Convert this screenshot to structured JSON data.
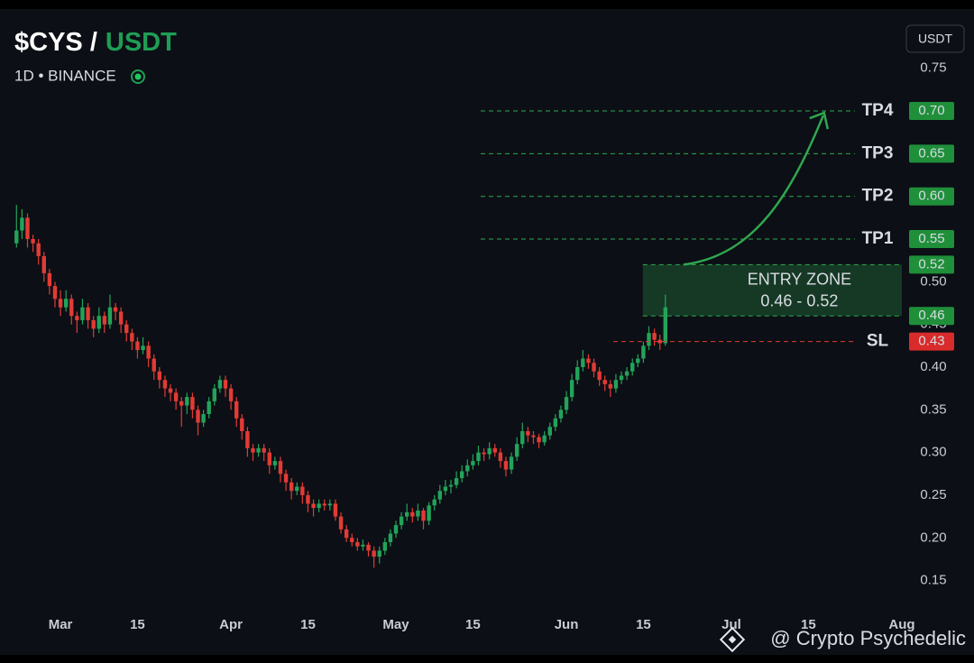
{
  "chart_data": {
    "type": "candlestick",
    "title_base": "$CYS /",
    "title_quote": "USDT",
    "subtitle": "1D • BINANCE",
    "currency_button": "USDT",
    "watermark": "@ Crypto Psychedelic",
    "up_color": "#22a35a",
    "down_color": "#e23b35",
    "x": [
      "02-21",
      "02-22",
      "02-23",
      "02-24",
      "02-25",
      "02-26",
      "02-27",
      "02-28",
      "03-01",
      "03-02",
      "03-03",
      "03-04",
      "03-05",
      "03-06",
      "03-07",
      "03-08",
      "03-09",
      "03-10",
      "03-11",
      "03-12",
      "03-13",
      "03-14",
      "03-15",
      "03-16",
      "03-17",
      "03-18",
      "03-19",
      "03-20",
      "03-21",
      "03-22",
      "03-23",
      "03-24",
      "03-25",
      "03-26",
      "03-27",
      "03-28",
      "03-29",
      "03-30",
      "03-31",
      "04-01",
      "04-02",
      "04-03",
      "04-04",
      "04-05",
      "04-06",
      "04-07",
      "04-08",
      "04-09",
      "04-10",
      "04-11",
      "04-12",
      "04-13",
      "04-14",
      "04-15",
      "04-16",
      "04-17",
      "04-18",
      "04-19",
      "04-20",
      "04-21",
      "04-22",
      "04-23",
      "04-24",
      "04-25",
      "04-26",
      "04-27",
      "04-28",
      "04-29",
      "04-30",
      "05-01",
      "05-02",
      "05-03",
      "05-04",
      "05-05",
      "05-06",
      "05-07",
      "05-08",
      "05-09",
      "05-10",
      "05-11",
      "05-12",
      "05-13",
      "05-14",
      "05-15",
      "05-16",
      "05-17",
      "05-18",
      "05-19",
      "05-20",
      "05-21",
      "05-22",
      "05-23",
      "05-24",
      "05-25",
      "05-26",
      "05-27",
      "05-28",
      "05-29",
      "05-30",
      "05-31",
      "06-01",
      "06-02",
      "06-03",
      "06-04",
      "06-05",
      "06-06",
      "06-07",
      "06-08",
      "06-09",
      "06-10",
      "06-11",
      "06-12",
      "06-13",
      "06-14",
      "06-15",
      "06-16",
      "06-17",
      "06-18",
      "06-19"
    ],
    "ohlc": [
      [
        0.545,
        0.59,
        0.54,
        0.56
      ],
      [
        0.56,
        0.585,
        0.55,
        0.575
      ],
      [
        0.575,
        0.58,
        0.54,
        0.55
      ],
      [
        0.55,
        0.555,
        0.535,
        0.545
      ],
      [
        0.545,
        0.55,
        0.52,
        0.53
      ],
      [
        0.53,
        0.535,
        0.5,
        0.51
      ],
      [
        0.51,
        0.515,
        0.485,
        0.495
      ],
      [
        0.495,
        0.5,
        0.47,
        0.48
      ],
      [
        0.48,
        0.49,
        0.46,
        0.47
      ],
      [
        0.47,
        0.49,
        0.465,
        0.48
      ],
      [
        0.48,
        0.485,
        0.45,
        0.46
      ],
      [
        0.46,
        0.465,
        0.44,
        0.455
      ],
      [
        0.455,
        0.48,
        0.45,
        0.47
      ],
      [
        0.47,
        0.475,
        0.445,
        0.455
      ],
      [
        0.455,
        0.46,
        0.435,
        0.445
      ],
      [
        0.445,
        0.47,
        0.44,
        0.46
      ],
      [
        0.46,
        0.465,
        0.44,
        0.45
      ],
      [
        0.45,
        0.485,
        0.445,
        0.47
      ],
      [
        0.47,
        0.475,
        0.455,
        0.465
      ],
      [
        0.465,
        0.47,
        0.44,
        0.45
      ],
      [
        0.45,
        0.455,
        0.43,
        0.44
      ],
      [
        0.44,
        0.445,
        0.42,
        0.43
      ],
      [
        0.43,
        0.435,
        0.41,
        0.42
      ],
      [
        0.42,
        0.435,
        0.415,
        0.425
      ],
      [
        0.425,
        0.43,
        0.4,
        0.41
      ],
      [
        0.41,
        0.415,
        0.385,
        0.395
      ],
      [
        0.395,
        0.4,
        0.375,
        0.385
      ],
      [
        0.385,
        0.39,
        0.365,
        0.375
      ],
      [
        0.375,
        0.38,
        0.36,
        0.37
      ],
      [
        0.37,
        0.375,
        0.35,
        0.36
      ],
      [
        0.36,
        0.365,
        0.33,
        0.355
      ],
      [
        0.355,
        0.37,
        0.345,
        0.365
      ],
      [
        0.365,
        0.37,
        0.34,
        0.35
      ],
      [
        0.35,
        0.355,
        0.32,
        0.335
      ],
      [
        0.335,
        0.35,
        0.33,
        0.345
      ],
      [
        0.345,
        0.365,
        0.34,
        0.36
      ],
      [
        0.36,
        0.38,
        0.355,
        0.375
      ],
      [
        0.375,
        0.39,
        0.37,
        0.385
      ],
      [
        0.385,
        0.39,
        0.365,
        0.375
      ],
      [
        0.375,
        0.38,
        0.35,
        0.36
      ],
      [
        0.36,
        0.365,
        0.33,
        0.34
      ],
      [
        0.34,
        0.345,
        0.315,
        0.325
      ],
      [
        0.325,
        0.33,
        0.295,
        0.305
      ],
      [
        0.305,
        0.31,
        0.29,
        0.3
      ],
      [
        0.3,
        0.31,
        0.295,
        0.305
      ],
      [
        0.305,
        0.31,
        0.29,
        0.3
      ],
      [
        0.3,
        0.305,
        0.275,
        0.285
      ],
      [
        0.285,
        0.295,
        0.28,
        0.29
      ],
      [
        0.29,
        0.295,
        0.265,
        0.275
      ],
      [
        0.275,
        0.28,
        0.255,
        0.265
      ],
      [
        0.265,
        0.27,
        0.245,
        0.255
      ],
      [
        0.255,
        0.265,
        0.25,
        0.26
      ],
      [
        0.26,
        0.265,
        0.24,
        0.25
      ],
      [
        0.25,
        0.255,
        0.23,
        0.24
      ],
      [
        0.24,
        0.245,
        0.225,
        0.235
      ],
      [
        0.235,
        0.245,
        0.23,
        0.24
      ],
      [
        0.24,
        0.245,
        0.232,
        0.238
      ],
      [
        0.238,
        0.245,
        0.232,
        0.24
      ],
      [
        0.24,
        0.245,
        0.22,
        0.225
      ],
      [
        0.225,
        0.23,
        0.205,
        0.21
      ],
      [
        0.21,
        0.215,
        0.195,
        0.2
      ],
      [
        0.2,
        0.205,
        0.19,
        0.195
      ],
      [
        0.195,
        0.2,
        0.185,
        0.19
      ],
      [
        0.19,
        0.198,
        0.185,
        0.192
      ],
      [
        0.192,
        0.195,
        0.178,
        0.185
      ],
      [
        0.185,
        0.19,
        0.165,
        0.178
      ],
      [
        0.178,
        0.19,
        0.17,
        0.185
      ],
      [
        0.185,
        0.2,
        0.18,
        0.195
      ],
      [
        0.195,
        0.21,
        0.19,
        0.205
      ],
      [
        0.205,
        0.22,
        0.2,
        0.215
      ],
      [
        0.215,
        0.23,
        0.21,
        0.225
      ],
      [
        0.225,
        0.24,
        0.22,
        0.23
      ],
      [
        0.23,
        0.235,
        0.218,
        0.225
      ],
      [
        0.225,
        0.24,
        0.22,
        0.232
      ],
      [
        0.232,
        0.235,
        0.21,
        0.22
      ],
      [
        0.22,
        0.242,
        0.215,
        0.238
      ],
      [
        0.238,
        0.25,
        0.232,
        0.245
      ],
      [
        0.245,
        0.262,
        0.24,
        0.255
      ],
      [
        0.255,
        0.268,
        0.25,
        0.26
      ],
      [
        0.26,
        0.268,
        0.252,
        0.262
      ],
      [
        0.262,
        0.278,
        0.258,
        0.27
      ],
      [
        0.27,
        0.285,
        0.265,
        0.278
      ],
      [
        0.278,
        0.292,
        0.272,
        0.285
      ],
      [
        0.285,
        0.298,
        0.28,
        0.29
      ],
      [
        0.29,
        0.308,
        0.285,
        0.3
      ],
      [
        0.3,
        0.305,
        0.29,
        0.298
      ],
      [
        0.298,
        0.312,
        0.292,
        0.305
      ],
      [
        0.305,
        0.31,
        0.295,
        0.3
      ],
      [
        0.3,
        0.305,
        0.282,
        0.29
      ],
      [
        0.29,
        0.295,
        0.272,
        0.28
      ],
      [
        0.28,
        0.3,
        0.275,
        0.295
      ],
      [
        0.295,
        0.318,
        0.29,
        0.31
      ],
      [
        0.31,
        0.335,
        0.305,
        0.325
      ],
      [
        0.325,
        0.33,
        0.312,
        0.32
      ],
      [
        0.32,
        0.325,
        0.31,
        0.318
      ],
      [
        0.318,
        0.322,
        0.305,
        0.312
      ],
      [
        0.312,
        0.325,
        0.308,
        0.32
      ],
      [
        0.32,
        0.335,
        0.315,
        0.33
      ],
      [
        0.33,
        0.345,
        0.325,
        0.34
      ],
      [
        0.34,
        0.355,
        0.335,
        0.35
      ],
      [
        0.35,
        0.372,
        0.345,
        0.365
      ],
      [
        0.365,
        0.392,
        0.36,
        0.385
      ],
      [
        0.385,
        0.408,
        0.38,
        0.4
      ],
      [
        0.4,
        0.42,
        0.395,
        0.41
      ],
      [
        0.41,
        0.415,
        0.398,
        0.405
      ],
      [
        0.405,
        0.41,
        0.388,
        0.395
      ],
      [
        0.395,
        0.4,
        0.378,
        0.385
      ],
      [
        0.385,
        0.39,
        0.372,
        0.38
      ],
      [
        0.38,
        0.385,
        0.365,
        0.375
      ],
      [
        0.375,
        0.392,
        0.37,
        0.385
      ],
      [
        0.385,
        0.395,
        0.38,
        0.39
      ],
      [
        0.39,
        0.4,
        0.385,
        0.395
      ],
      [
        0.395,
        0.41,
        0.39,
        0.405
      ],
      [
        0.405,
        0.415,
        0.4,
        0.41
      ],
      [
        0.41,
        0.43,
        0.405,
        0.425
      ],
      [
        0.425,
        0.448,
        0.42,
        0.44
      ],
      [
        0.44,
        0.445,
        0.425,
        0.432
      ],
      [
        0.432,
        0.438,
        0.42,
        0.428
      ],
      [
        0.428,
        0.485,
        0.425,
        0.47
      ]
    ],
    "xlim": [
      "02-18",
      "08-01"
    ],
    "xticks": [
      {
        "value": "03-01",
        "label": "Mar"
      },
      {
        "value": "03-15",
        "label": "15"
      },
      {
        "value": "04-01",
        "label": "Apr"
      },
      {
        "value": "04-15",
        "label": "15"
      },
      {
        "value": "05-01",
        "label": "May"
      },
      {
        "value": "05-15",
        "label": "15"
      },
      {
        "value": "06-01",
        "label": "Jun"
      },
      {
        "value": "06-15",
        "label": "15"
      },
      {
        "value": "07-01",
        "label": "Jul"
      },
      {
        "value": "07-15",
        "label": "15"
      },
      {
        "value": "08-01",
        "label": "Aug"
      }
    ],
    "ylim": [
      0.12,
      0.83
    ],
    "yticks": [
      0.15,
      {
        "value": 0.2,
        "label": "0.20"
      },
      0.25,
      {
        "value": 0.3,
        "label": "0.30"
      },
      0.35,
      {
        "value": 0.4,
        "label": "0.40"
      },
      0.45,
      {
        "value": 0.5,
        "label": "0.50"
      },
      0.55,
      {
        "value": 0.6,
        "label": "0.60"
      },
      0.65,
      {
        "value": 0.7,
        "label": "0.70"
      },
      0.75
    ],
    "levels": [
      {
        "name": "TP4",
        "value": 0.7,
        "value_label": "0.70",
        "color": "#2fa84f"
      },
      {
        "name": "TP3",
        "value": 0.65,
        "value_label": "0.65",
        "color": "#2fa84f"
      },
      {
        "name": "TP2",
        "value": 0.6,
        "value_label": "0.60",
        "color": "#2fa84f"
      },
      {
        "name": "TP1",
        "value": 0.55,
        "value_label": "0.55",
        "color": "#2fa84f"
      },
      {
        "name": "SL",
        "value": 0.43,
        "value_label": "0.43",
        "color": "#e23b35"
      }
    ],
    "entry_zone": {
      "title": "ENTRY ZONE",
      "range_label": "0.46 - 0.52",
      "low": 0.46,
      "low_label": "0.46",
      "high": 0.52,
      "high_label": "0.52",
      "color": "#2fa84f"
    }
  }
}
